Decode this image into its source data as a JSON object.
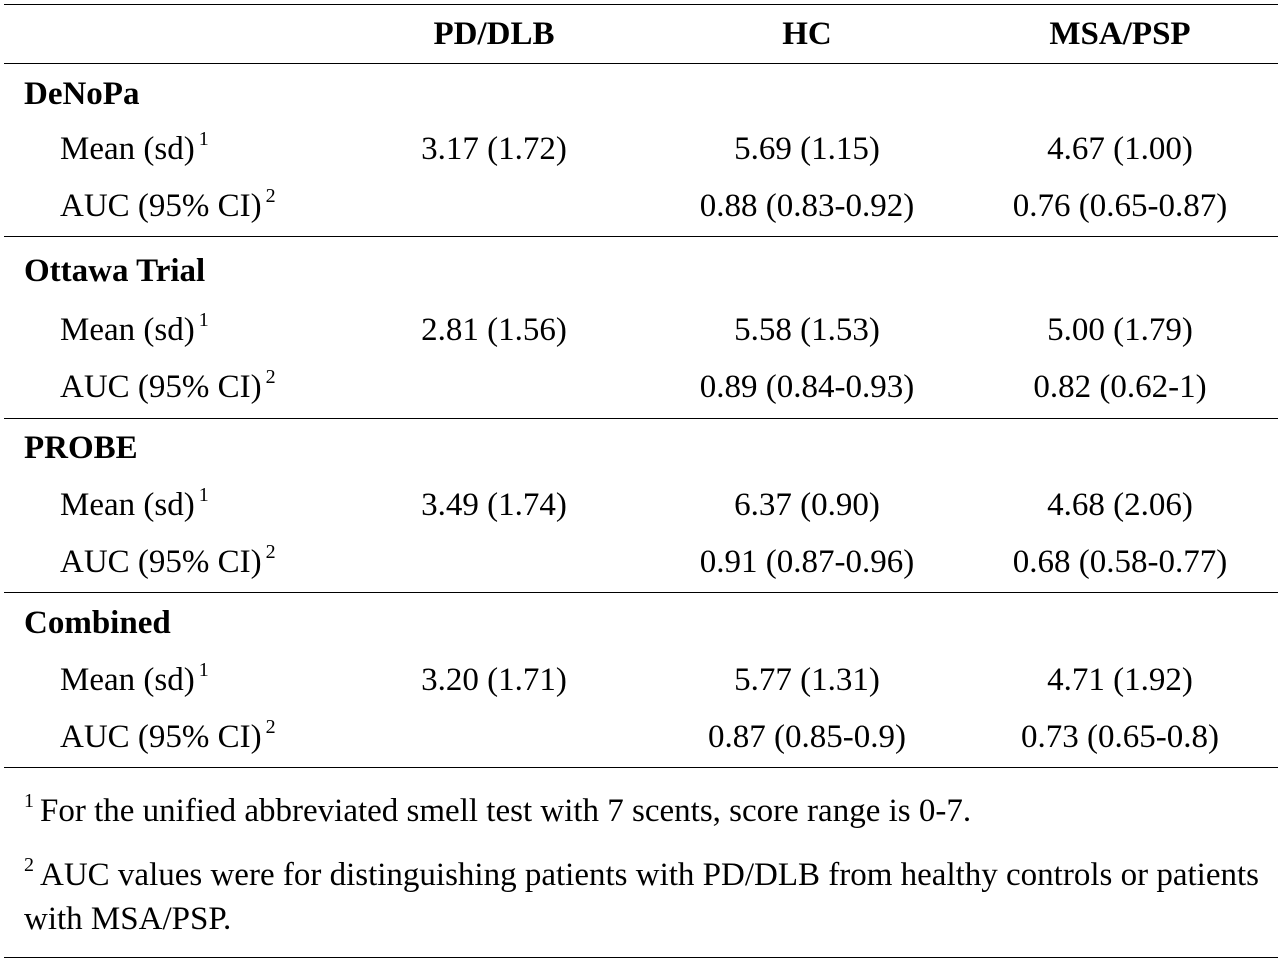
{
  "table": {
    "headers": [
      "",
      "PD/DLB",
      "HC",
      "MSA/PSP"
    ],
    "groups": [
      {
        "name": "DeNoPa",
        "rows": [
          {
            "label": "Mean (sd)",
            "note": "1",
            "values": [
              "3.17 (1.72)",
              "5.69 (1.15)",
              "4.67 (1.00)"
            ]
          },
          {
            "label": "AUC (95% CI)",
            "note": "2",
            "values": [
              "",
              "0.88 (0.83-0.92)",
              "0.76 (0.65-0.87)"
            ]
          }
        ]
      },
      {
        "name": "Ottawa Trial",
        "rows": [
          {
            "label": "Mean (sd)",
            "note": "1",
            "values": [
              "2.81 (1.56)",
              "5.58 (1.53)",
              "5.00 (1.79)"
            ]
          },
          {
            "label": "AUC (95% CI)",
            "note": "2",
            "values": [
              "",
              "0.89 (0.84-0.93)",
              "0.82 (0.62-1)"
            ]
          }
        ]
      },
      {
        "name": "PROBE",
        "rows": [
          {
            "label": "Mean (sd)",
            "note": "1",
            "values": [
              "3.49 (1.74)",
              "6.37 (0.90)",
              "4.68 (2.06)"
            ]
          },
          {
            "label": "AUC (95% CI)",
            "note": "2",
            "values": [
              "",
              "0.91 (0.87-0.96)",
              "0.68 (0.58-0.77)"
            ]
          }
        ]
      },
      {
        "name": "Combined",
        "rows": [
          {
            "label": "Mean (sd)",
            "note": "1",
            "values": [
              "3.20 (1.71)",
              "5.77 (1.31)",
              "4.71 (1.92)"
            ]
          },
          {
            "label": "AUC (95% CI)",
            "note": "2",
            "values": [
              "",
              "0.87 (0.85-0.9)",
              "0.73 (0.65-0.8)"
            ]
          }
        ]
      }
    ]
  },
  "footnotes": [
    {
      "mark": "1",
      "text": "For the unified abbreviated smell test with 7 scents, score range is 0-7."
    },
    {
      "mark": "2",
      "text": "AUC values were for distinguishing patients with PD/DLB from healthy controls or patients with MSA/PSP."
    }
  ]
}
